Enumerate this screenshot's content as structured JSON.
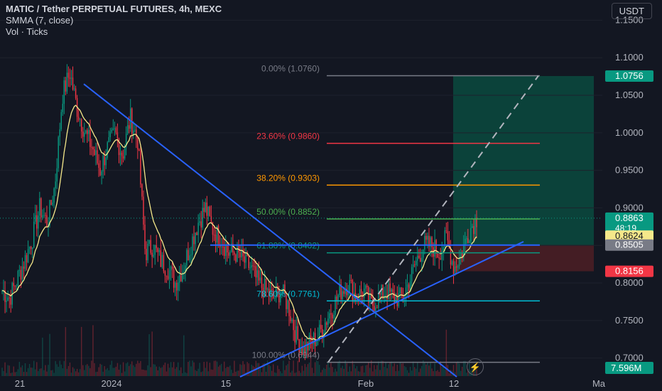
{
  "legend": {
    "title": "MATIC / Tether PERPETUAL FUTURES, 4h, MEXC",
    "indicator": "SMMA (7, close)",
    "volume": "Vol · Ticks"
  },
  "currency_button": "USDT",
  "colors": {
    "background": "#131722",
    "up": "#089981",
    "down": "#f23645",
    "smma": "#f5e88a",
    "trendline": "#2962ff",
    "fib_0": "#787b86",
    "fib_236": "#f23645",
    "fib_382": "#ff9800",
    "fib_50": "#4caf50",
    "fib_618": "#089981",
    "fib_786": "#00bcd4",
    "fib_100": "#787b86",
    "target_zone": "#0a4a3e",
    "stop_zone": "#4a1e25"
  },
  "chart_data": {
    "type": "candlestick",
    "price_axis": {
      "ticks": [
        "1.1500",
        "1.1000",
        "1.0500",
        "1.0000",
        "0.9500",
        "0.9000",
        "0.8500",
        "0.8000",
        "0.7500",
        "0.7000"
      ],
      "range": [
        0.676,
        1.175
      ]
    },
    "time_axis": {
      "ticks": [
        "21",
        "2024",
        "15",
        "Feb",
        "12",
        "Ma"
      ]
    },
    "fibonacci": [
      {
        "label": "0.00% (1.0760)",
        "price": 1.076,
        "color_key": "fib_0"
      },
      {
        "label": "23.60% (0.9860)",
        "price": 0.986,
        "color_key": "fib_236"
      },
      {
        "label": "38.20% (0.9303)",
        "price": 0.9303,
        "color_key": "fib_382"
      },
      {
        "label": "50.00% (0.8852)",
        "price": 0.8852,
        "color_key": "fib_50"
      },
      {
        "label": "61.80% (0.8402)",
        "price": 0.8402,
        "color_key": "fib_618"
      },
      {
        "label": "78.60% (0.7761)",
        "price": 0.7761,
        "color_key": "fib_786"
      },
      {
        "label": "100.00% (0.6944)",
        "price": 0.6944,
        "color_key": "fib_100"
      }
    ],
    "price_badges": [
      {
        "text": "1.0756",
        "price": 1.0756,
        "bg": "#089981",
        "fg": "#ffffff"
      },
      {
        "text": "0.8863",
        "price": 0.8863,
        "bg": "#089981",
        "fg": "#ffffff",
        "sub": "48:19"
      },
      {
        "text": "0.8624",
        "price": 0.8624,
        "bg": "#f5e88a",
        "fg": "#131722"
      },
      {
        "text": "0.8505",
        "price": 0.8505,
        "bg": "#787b86",
        "fg": "#ffffff"
      },
      {
        "text": "0.8156",
        "price": 0.8156,
        "bg": "#f23645",
        "fg": "#ffffff"
      }
    ],
    "volume_badge": {
      "text": "7.596M",
      "bg": "#089981"
    },
    "position": {
      "entry": 0.8505,
      "target": 1.0756,
      "stop": 0.8156
    },
    "last_price": 0.8863,
    "trend_lines": [
      {
        "name": "descending",
        "from": [
          "Dec 25",
          1.065
        ],
        "to": [
          "Feb 12",
          0.675
        ]
      },
      {
        "name": "ascending",
        "from": [
          "Jan 15",
          0.675
        ],
        "to": [
          "Feb 21",
          0.855
        ]
      },
      {
        "name": "horizontal-resistance",
        "from": [
          "Jan 10",
          0.8505
        ],
        "to": [
          "Feb 21",
          0.8505
        ]
      },
      {
        "name": "projection",
        "from": [
          "Jan 24",
          0.6944
        ],
        "to": [
          "Feb 21",
          1.076
        ]
      }
    ],
    "price_path": [
      [
        0.79,
        0.79
      ],
      [
        0.78,
        0.78
      ],
      [
        0.805,
        0.805
      ],
      [
        0.83,
        0.83
      ],
      [
        0.86,
        0.86
      ],
      [
        0.9,
        0.9
      ],
      [
        0.88,
        0.88
      ],
      [
        0.93,
        0.93
      ],
      [
        1.05,
        1.05
      ],
      [
        1.08,
        1.08
      ],
      [
        1.03,
        1.03
      ],
      [
        1.0,
        1.0
      ],
      [
        0.98,
        0.98
      ],
      [
        0.95,
        0.95
      ],
      [
        0.98,
        0.98
      ],
      [
        1.0,
        1.0
      ],
      [
        0.97,
        0.97
      ],
      [
        1.02,
        1.02
      ],
      [
        0.99,
        0.99
      ],
      [
        0.84,
        0.84
      ],
      [
        0.85,
        0.85
      ],
      [
        0.83,
        0.83
      ],
      [
        0.82,
        0.82
      ],
      [
        0.8,
        0.8
      ],
      [
        0.82,
        0.82
      ],
      [
        0.85,
        0.85
      ],
      [
        0.88,
        0.88
      ],
      [
        0.9,
        0.9
      ],
      [
        0.87,
        0.87
      ],
      [
        0.86,
        0.86
      ],
      [
        0.84,
        0.84
      ],
      [
        0.84,
        0.84
      ],
      [
        0.83,
        0.83
      ],
      [
        0.82,
        0.82
      ],
      [
        0.8,
        0.8
      ],
      [
        0.79,
        0.79
      ],
      [
        0.78,
        0.78
      ],
      [
        0.79,
        0.79
      ],
      [
        0.77,
        0.77
      ],
      [
        0.73,
        0.73
      ],
      [
        0.71,
        0.71
      ],
      [
        0.72,
        0.72
      ],
      [
        0.73,
        0.73
      ],
      [
        0.75,
        0.75
      ],
      [
        0.77,
        0.77
      ],
      [
        0.79,
        0.79
      ],
      [
        0.8,
        0.8
      ],
      [
        0.78,
        0.78
      ],
      [
        0.79,
        0.79
      ],
      [
        0.77,
        0.77
      ],
      [
        0.78,
        0.78
      ],
      [
        0.79,
        0.79
      ],
      [
        0.78,
        0.78
      ],
      [
        0.78,
        0.78
      ],
      [
        0.8,
        0.8
      ],
      [
        0.83,
        0.83
      ],
      [
        0.85,
        0.85
      ],
      [
        0.85,
        0.85
      ],
      [
        0.84,
        0.84
      ],
      [
        0.86,
        0.86
      ],
      [
        0.82,
        0.82
      ],
      [
        0.84,
        0.84
      ],
      [
        0.87,
        0.87
      ],
      [
        0.8863,
        0.8863
      ]
    ]
  }
}
